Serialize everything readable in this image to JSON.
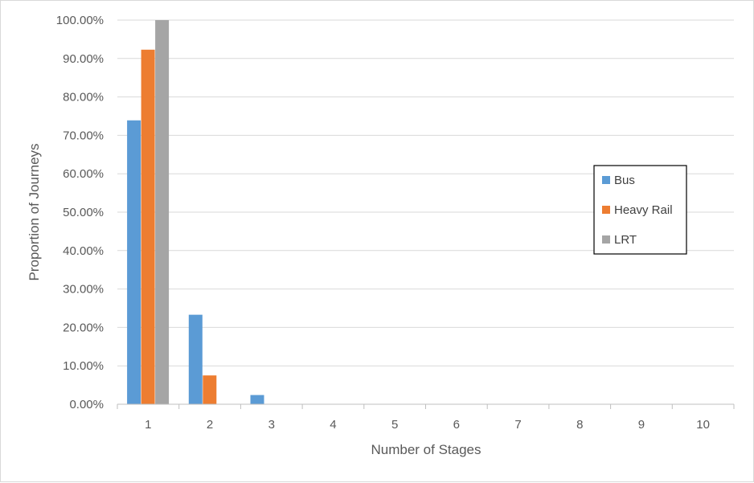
{
  "chart_data": {
    "type": "bar",
    "title": "",
    "xlabel": "Number of Stages",
    "ylabel": "Proportion of Journeys",
    "categories": [
      "1",
      "2",
      "3",
      "4",
      "5",
      "6",
      "7",
      "8",
      "9",
      "10"
    ],
    "series": [
      {
        "name": "Bus",
        "color": "#5b9bd5",
        "values": [
          0.739,
          0.233,
          0.024,
          0,
          0,
          0,
          0,
          0,
          0,
          0
        ]
      },
      {
        "name": "Heavy Rail",
        "color": "#ed7d31",
        "values": [
          0.923,
          0.075,
          0,
          0,
          0,
          0,
          0,
          0,
          0,
          0
        ]
      },
      {
        "name": "LRT",
        "color": "#a5a5a5",
        "values": [
          1.0,
          0,
          0,
          0,
          0,
          0,
          0,
          0,
          0,
          0
        ]
      }
    ],
    "ylim": [
      0,
      1
    ],
    "yticks": [
      0,
      0.1,
      0.2,
      0.3,
      0.4,
      0.5,
      0.6,
      0.7,
      0.8,
      0.9,
      1.0
    ],
    "ytick_labels": [
      "0.00%",
      "10.00%",
      "20.00%",
      "30.00%",
      "40.00%",
      "50.00%",
      "60.00%",
      "70.00%",
      "80.00%",
      "90.00%",
      "100.00%"
    ],
    "grid": true,
    "legend_position": "right",
    "colors": {
      "grid": "#d9d9d9",
      "axis": "#bfbfbf",
      "text": "#595959"
    }
  }
}
